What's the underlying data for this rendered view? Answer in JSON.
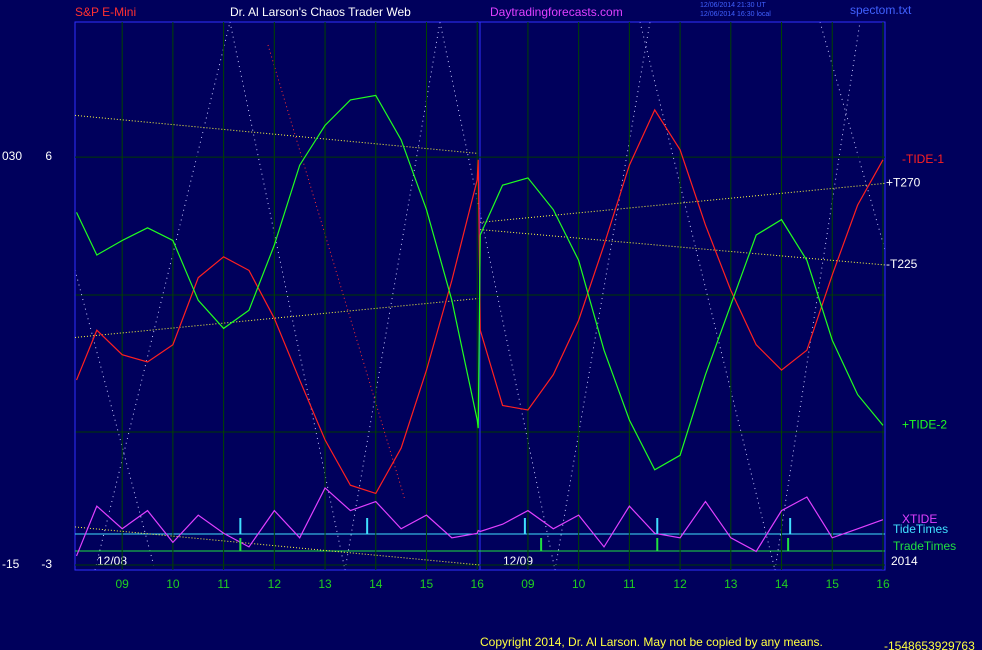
{
  "header": {
    "symbol": "S&P E-Mini",
    "site_title": "Dr. Al Larson's Chaos Trader Web",
    "site_url": "Daytradingforecasts.com",
    "timestamp_ut": "12/06/2014 21:30 UT",
    "timestamp_local": "12/06/2014 16:30 local",
    "file": "spectom.txt"
  },
  "chart_data": {
    "type": "line",
    "x": [
      -0.9,
      -0.5,
      0,
      0.5,
      1,
      1.5,
      2,
      2.5,
      3,
      3.5,
      4,
      4.5,
      5,
      5.5,
      6,
      6.5,
      7,
      7.02,
      7.06,
      7.5,
      8,
      8.5,
      9,
      9.5,
      10,
      10.5,
      11,
      11.5,
      12,
      12.5,
      13,
      13.5,
      14,
      14.5,
      15
    ],
    "series": [
      {
        "name": "-TIDE-1",
        "color": "#ff2020",
        "values": [
          5.4,
          10.9,
          8.2,
          7.4,
          9.3,
          16.7,
          19.0,
          17.5,
          12.2,
          5.4,
          -1.2,
          -6.2,
          -7.1,
          -2.1,
          6.5,
          16.4,
          27.5,
          29.7,
          10.9,
          2.6,
          2.1,
          6.0,
          12.0,
          20.3,
          29.1,
          35.2,
          30.8,
          22.5,
          15.3,
          9.3,
          6.5,
          8.7,
          17.0,
          24.7,
          29.7
        ]
      },
      {
        "name": "+TIDE-2",
        "color": "#20ff20",
        "values": [
          23.9,
          19.2,
          20.8,
          22.2,
          20.8,
          14.2,
          11.1,
          13.1,
          20.3,
          29.1,
          33.5,
          36.3,
          36.8,
          31.9,
          24.2,
          14.2,
          1.0,
          0.1,
          21.4,
          26.9,
          27.7,
          24.2,
          18.6,
          8.7,
          1.0,
          -4.5,
          -2.9,
          6.0,
          13.7,
          21.4,
          23.1,
          18.6,
          9.8,
          3.8,
          0.4
        ]
      },
      {
        "name": "XTIDE",
        "color": "#e040ff",
        "values": [
          -14,
          -8.5,
          -11,
          -9,
          -12.5,
          -9.5,
          -11.5,
          -13,
          -9,
          -12,
          -6.5,
          -9,
          -8,
          -11,
          -9.5,
          -12,
          -11.5,
          -11.2,
          -11.3,
          -10.5,
          -9,
          -11,
          -9.5,
          -13,
          -8.5,
          -11.5,
          -12,
          -8,
          -12,
          -13.5,
          -9,
          -7.5,
          -12,
          -11,
          -10
        ]
      }
    ],
    "trend_lines": [
      {
        "color": "#ffff40",
        "x": [
          -0.93,
          7.02
        ],
        "values": [
          34.6,
          30.4
        ]
      },
      {
        "color": "#ffff40",
        "x": [
          -0.93,
          7.02
        ],
        "values": [
          10.1,
          14.4
        ]
      },
      {
        "color": "#ffff40",
        "x": [
          -0.93,
          7.06
        ],
        "values": [
          -10.8,
          -15.0
        ]
      },
      {
        "label": "+T270",
        "color": "#ffff40",
        "x": [
          7.06,
          15.04
        ],
        "values": [
          22.8,
          27.1
        ]
      },
      {
        "label": "-T225",
        "color": "#ffff40",
        "x": [
          7.06,
          15.04
        ],
        "values": [
          22.0,
          18.1
        ]
      }
    ],
    "events": [
      {
        "name": "TideTimes",
        "color": "#40e0ff",
        "x": [
          2.33,
          4.83,
          7.94,
          10.55,
          13.17
        ]
      },
      {
        "name": "TradeTimes",
        "color": "#20e040",
        "x": [
          2.33,
          8.26,
          10.55,
          13.13
        ]
      }
    ],
    "xlim": [
      -0.93,
      15.04
    ],
    "xticks": [
      {
        "value": 0,
        "label": "09"
      },
      {
        "value": 1,
        "label": "10"
      },
      2,
      {
        "value": 2,
        "label": "11"
      },
      {
        "value": 3,
        "label": "12"
      },
      {
        "value": 4,
        "label": "13"
      },
      {
        "value": 5,
        "label": "14"
      },
      {
        "value": 6,
        "label": "15"
      },
      {
        "value": 7,
        "label": "16"
      },
      {
        "value": 8,
        "label": "09"
      },
      {
        "value": 9,
        "label": "10"
      },
      {
        "value": 10,
        "label": "11"
      },
      {
        "value": 11,
        "label": "12"
      },
      {
        "value": 12,
        "label": "13"
      },
      {
        "value": 13,
        "label": "14"
      },
      {
        "value": 14,
        "label": "15"
      },
      {
        "value": 15,
        "label": "16"
      }
    ],
    "ylim": [
      -15.55,
      44.9
    ],
    "yticks": [
      -15,
      {
        "value": 30,
        "label": "030"
      }
    ],
    "y2lim": [
      -3.11,
      8.98
    ],
    "y2ticks": [
      -3,
      6
    ],
    "dates": [
      "12/08",
      "12/09"
    ],
    "year": "2014",
    "grid": true
  },
  "footer": {
    "copyright": "Copyright 2014, Dr. Al Larson. May not be copied by any means.",
    "code": "-1548653929763"
  }
}
